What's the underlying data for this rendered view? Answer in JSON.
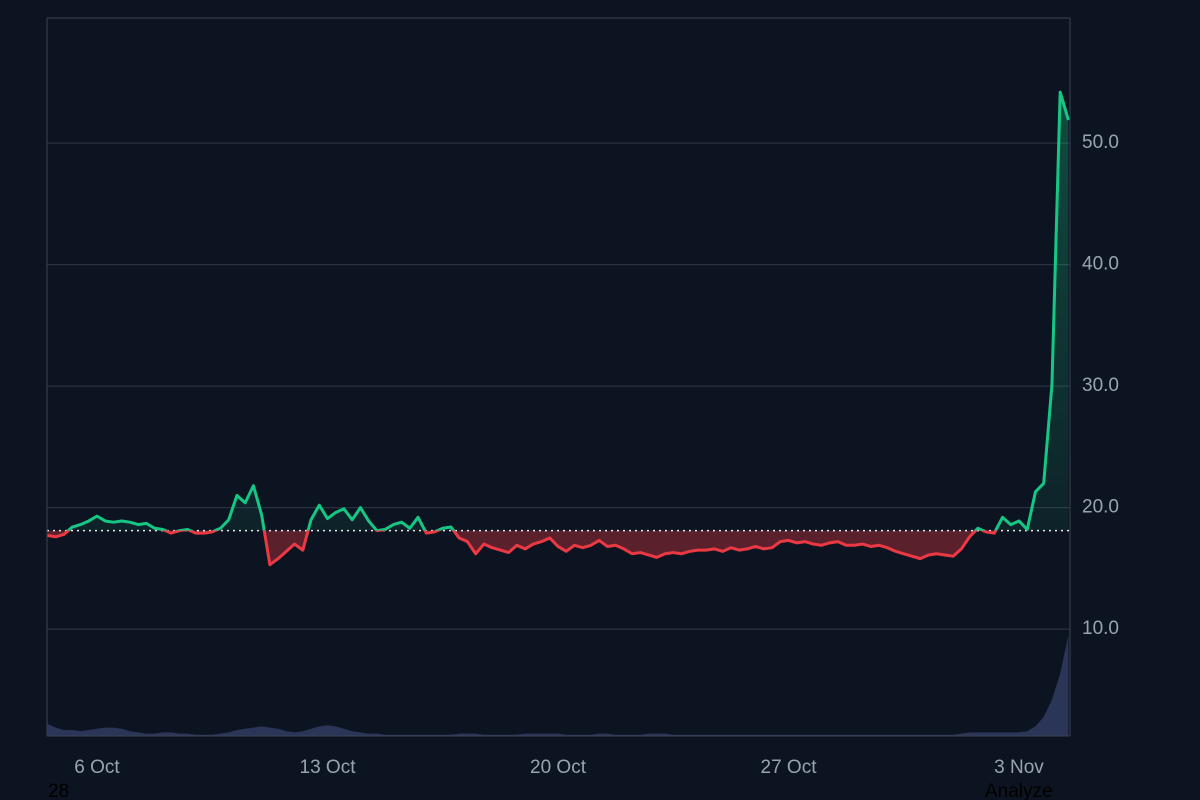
{
  "chart_data": {
    "type": "line",
    "categories": [
      null,
      null,
      null,
      null,
      null,
      null,
      "6 Oct",
      null,
      null,
      null,
      null,
      null,
      null,
      null,
      null,
      null,
      null,
      null,
      null,
      null,
      null,
      null,
      null,
      null,
      null,
      null,
      null,
      null,
      null,
      null,
      null,
      null,
      null,
      null,
      "13 Oct",
      null,
      null,
      null,
      null,
      null,
      null,
      null,
      null,
      null,
      null,
      null,
      null,
      null,
      null,
      null,
      null,
      null,
      null,
      null,
      null,
      null,
      null,
      null,
      null,
      null,
      null,
      null,
      "20 Oct",
      null,
      null,
      null,
      null,
      null,
      null,
      null,
      null,
      null,
      null,
      null,
      null,
      null,
      null,
      null,
      null,
      null,
      null,
      null,
      null,
      null,
      null,
      null,
      null,
      null,
      null,
      null,
      "27 Oct",
      null,
      null,
      null,
      null,
      null,
      null,
      null,
      null,
      null,
      null,
      null,
      null,
      null,
      null,
      null,
      null,
      null,
      null,
      null,
      null,
      null,
      null,
      null,
      null,
      null,
      null,
      null,
      "3 Nov",
      null,
      null,
      null,
      null,
      null,
      null
    ],
    "values": [
      17.7,
      17.6,
      17.8,
      18.4,
      18.6,
      18.9,
      19.3,
      18.9,
      18.8,
      18.9,
      18.8,
      18.6,
      18.7,
      18.3,
      18.2,
      17.9,
      18.1,
      18.2,
      17.9,
      17.9,
      18.0,
      18.3,
      19.0,
      21.0,
      20.4,
      21.8,
      19.4,
      15.3,
      15.8,
      16.4,
      17.0,
      16.5,
      19.0,
      20.2,
      19.1,
      19.6,
      19.9,
      19.0,
      20.0,
      18.9,
      18.1,
      18.2,
      18.6,
      18.8,
      18.3,
      19.2,
      17.9,
      18.0,
      18.3,
      18.4,
      17.5,
      17.2,
      16.2,
      17.0,
      16.7,
      16.5,
      16.3,
      16.9,
      16.6,
      17.0,
      17.2,
      17.5,
      16.8,
      16.4,
      16.9,
      16.7,
      16.9,
      17.3,
      16.8,
      16.9,
      16.6,
      16.2,
      16.3,
      16.1,
      15.9,
      16.2,
      16.3,
      16.2,
      16.4,
      16.5,
      16.5,
      16.6,
      16.4,
      16.7,
      16.5,
      16.6,
      16.8,
      16.6,
      16.7,
      17.2,
      17.3,
      17.1,
      17.2,
      17.0,
      16.9,
      17.1,
      17.2,
      16.9,
      16.9,
      17.0,
      16.8,
      16.9,
      16.7,
      16.4,
      16.2,
      16.0,
      15.8,
      16.1,
      16.2,
      16.1,
      16.0,
      16.6,
      17.6,
      18.3,
      18.0,
      17.9,
      19.2,
      18.6,
      18.9,
      18.2,
      21.3,
      22.0,
      30.1,
      54.2,
      51.9
    ],
    "baseline": 18.1,
    "up_color": "#16c784",
    "down_color": "#ea3943",
    "ylim": [
      1.2,
      60.3
    ],
    "yticks": [
      {
        "value": 10,
        "label": "10.0"
      },
      {
        "value": 20,
        "label": "20.0"
      },
      {
        "value": 30,
        "label": "30.0"
      },
      {
        "value": 40,
        "label": "40.0"
      },
      {
        "value": 50,
        "label": "50.0"
      }
    ],
    "grid": true,
    "volume": {
      "color": "#2b3558",
      "ylim": [
        0,
        10
      ],
      "values": [
        1.0,
        0.7,
        0.5,
        0.5,
        0.4,
        0.5,
        0.6,
        0.7,
        0.7,
        0.6,
        0.4,
        0.3,
        0.2,
        0.2,
        0.3,
        0.3,
        0.2,
        0.2,
        0.1,
        0.1,
        0.1,
        0.2,
        0.3,
        0.5,
        0.6,
        0.7,
        0.8,
        0.7,
        0.6,
        0.4,
        0.3,
        0.4,
        0.6,
        0.8,
        0.9,
        0.8,
        0.6,
        0.4,
        0.3,
        0.2,
        0.2,
        0.1,
        0.1,
        0.1,
        0.1,
        0.1,
        0.1,
        0.1,
        0.1,
        0.1,
        0.2,
        0.2,
        0.2,
        0.1,
        0.1,
        0.1,
        0.1,
        0.1,
        0.2,
        0.2,
        0.2,
        0.2,
        0.2,
        0.1,
        0.1,
        0.1,
        0.1,
        0.2,
        0.2,
        0.1,
        0.1,
        0.1,
        0.1,
        0.2,
        0.2,
        0.2,
        0.1,
        0.1,
        0.1,
        0.1,
        0.1,
        0.1,
        0.1,
        0.1,
        0.1,
        0.1,
        0.1,
        0.1,
        0.1,
        0.1,
        0.1,
        0.1,
        0.1,
        0.1,
        0.1,
        0.1,
        0.1,
        0.1,
        0.1,
        0.1,
        0.1,
        0.1,
        0.1,
        0.1,
        0.1,
        0.1,
        0.1,
        0.1,
        0.1,
        0.1,
        0.1,
        0.2,
        0.3,
        0.3,
        0.3,
        0.3,
        0.3,
        0.3,
        0.3,
        0.4,
        0.8,
        1.6,
        3.0,
        5.2,
        8.4
      ]
    }
  },
  "footer_left": "28",
  "footer_right": "Analyze"
}
